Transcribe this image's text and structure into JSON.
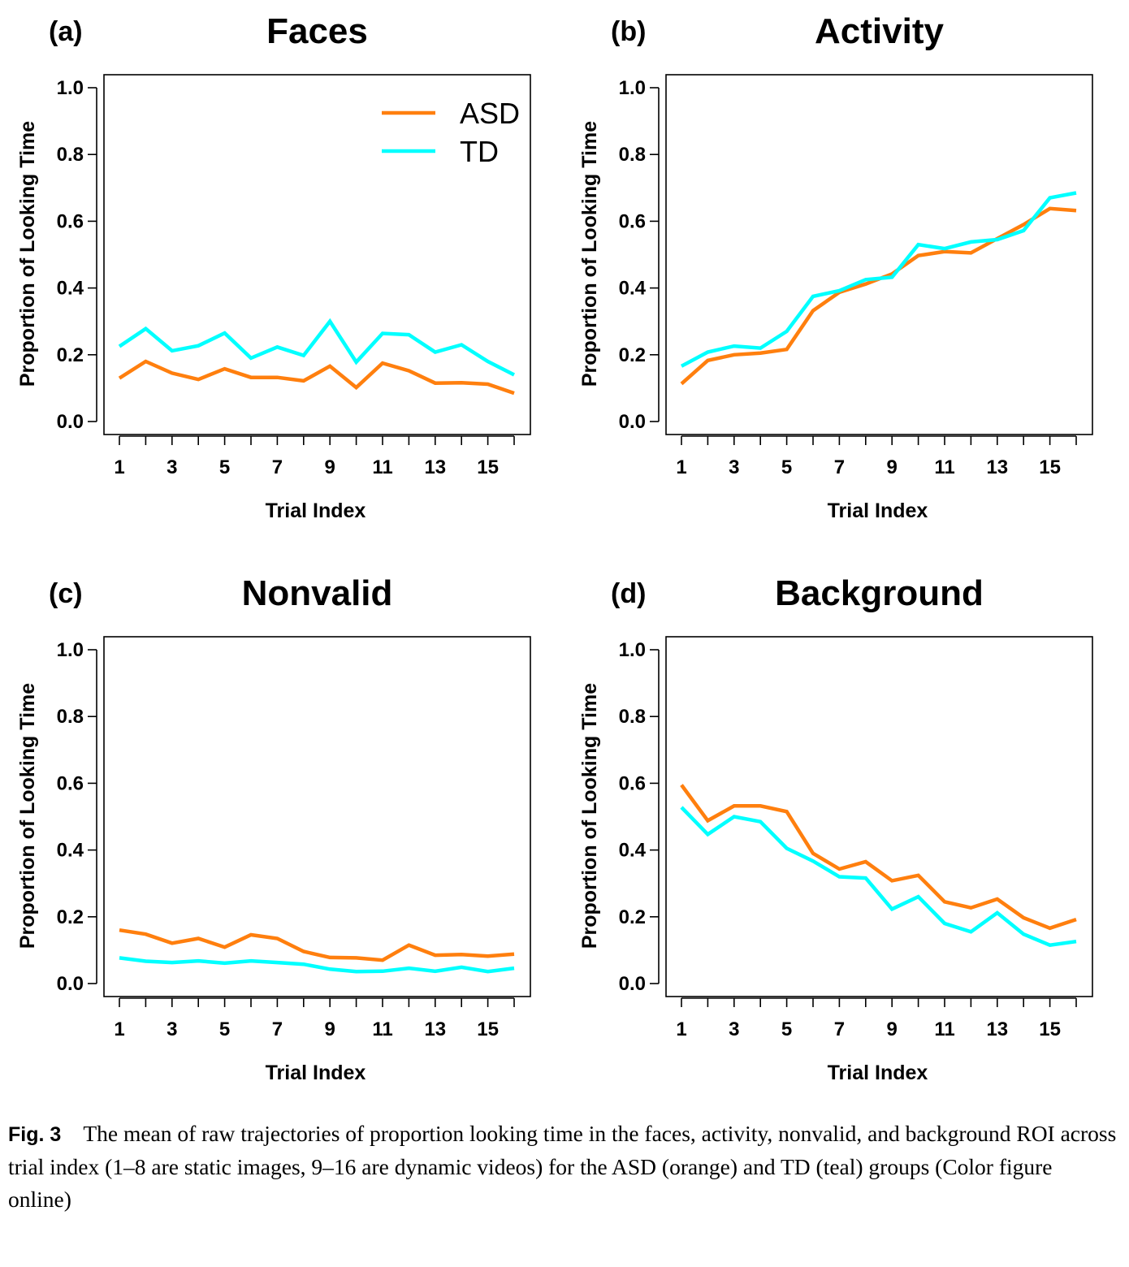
{
  "caption": {
    "label": "Fig. 3",
    "text": "The mean of raw trajectories of proportion looking time in the faces, activity, nonvalid, and background ROI across trial index (1–8 are static images, 9–16 are dynamic videos) for the ASD (orange) and TD (teal) groups (Color figure online)"
  },
  "colors": {
    "ASD": "#ff7f0e",
    "TD": "#00ffff"
  },
  "chart_data": [
    {
      "type": "line",
      "panel": "(a)",
      "title": "Faces",
      "xlabel": "Trial Index",
      "ylabel": "Proportion of Looking Time",
      "ylim": [
        0,
        1
      ],
      "yticks": [
        "0.0",
        "0.2",
        "0.4",
        "0.6",
        "0.8",
        "1.0"
      ],
      "xticklabels": [
        "1",
        "3",
        "5",
        "7",
        "9",
        "11",
        "13",
        "15"
      ],
      "x": [
        1,
        2,
        3,
        4,
        5,
        6,
        7,
        8,
        9,
        10,
        11,
        12,
        13,
        14,
        15,
        16
      ],
      "legend": {
        "position": "top-right",
        "entries": [
          "ASD",
          "TD"
        ]
      },
      "series": [
        {
          "name": "ASD",
          "color": "#ff7f0e",
          "values": [
            0.13,
            0.18,
            0.145,
            0.126,
            0.158,
            0.132,
            0.132,
            0.122,
            0.166,
            0.102,
            0.175,
            0.152,
            0.115,
            0.116,
            0.112,
            0.085
          ]
        },
        {
          "name": "TD",
          "color": "#00ffff",
          "values": [
            0.225,
            0.278,
            0.212,
            0.227,
            0.265,
            0.19,
            0.223,
            0.198,
            0.3,
            0.178,
            0.264,
            0.26,
            0.208,
            0.23,
            0.18,
            0.14
          ]
        }
      ]
    },
    {
      "type": "line",
      "panel": "(b)",
      "title": "Activity",
      "xlabel": "Trial Index",
      "ylabel": "Proportion of Looking Time",
      "ylim": [
        0,
        1
      ],
      "yticks": [
        "0.0",
        "0.2",
        "0.4",
        "0.6",
        "0.8",
        "1.0"
      ],
      "xticklabels": [
        "1",
        "3",
        "5",
        "7",
        "9",
        "11",
        "13",
        "15"
      ],
      "x": [
        1,
        2,
        3,
        4,
        5,
        6,
        7,
        8,
        9,
        10,
        11,
        12,
        13,
        14,
        15,
        16
      ],
      "series": [
        {
          "name": "ASD",
          "color": "#ff7f0e",
          "values": [
            0.113,
            0.183,
            0.2,
            0.205,
            0.216,
            0.332,
            0.387,
            0.412,
            0.442,
            0.497,
            0.509,
            0.505,
            0.548,
            0.59,
            0.638,
            0.632
          ]
        },
        {
          "name": "TD",
          "color": "#00ffff",
          "values": [
            0.166,
            0.208,
            0.226,
            0.22,
            0.27,
            0.375,
            0.392,
            0.425,
            0.432,
            0.53,
            0.518,
            0.538,
            0.545,
            0.572,
            0.67,
            0.685
          ]
        }
      ]
    },
    {
      "type": "line",
      "panel": "(c)",
      "title": "Nonvalid",
      "xlabel": "Trial Index",
      "ylabel": "Proportion of Looking Time",
      "ylim": [
        0,
        1
      ],
      "yticks": [
        "0.0",
        "0.2",
        "0.4",
        "0.6",
        "0.8",
        "1.0"
      ],
      "xticklabels": [
        "1",
        "3",
        "5",
        "7",
        "9",
        "11",
        "13",
        "15"
      ],
      "x": [
        1,
        2,
        3,
        4,
        5,
        6,
        7,
        8,
        9,
        10,
        11,
        12,
        13,
        14,
        15,
        16
      ],
      "series": [
        {
          "name": "ASD",
          "color": "#ff7f0e",
          "values": [
            0.16,
            0.148,
            0.121,
            0.135,
            0.109,
            0.146,
            0.135,
            0.096,
            0.078,
            0.077,
            0.07,
            0.115,
            0.085,
            0.087,
            0.082,
            0.088
          ]
        },
        {
          "name": "TD",
          "color": "#00ffff",
          "values": [
            0.077,
            0.067,
            0.063,
            0.068,
            0.061,
            0.068,
            0.063,
            0.058,
            0.043,
            0.036,
            0.037,
            0.046,
            0.037,
            0.049,
            0.036,
            0.046
          ]
        }
      ]
    },
    {
      "type": "line",
      "panel": "(d)",
      "title": "Background",
      "xlabel": "Trial Index",
      "ylabel": "Proportion of Looking Time",
      "ylim": [
        0,
        1
      ],
      "yticks": [
        "0.0",
        "0.2",
        "0.4",
        "0.6",
        "0.8",
        "1.0"
      ],
      "xticklabels": [
        "1",
        "3",
        "5",
        "7",
        "9",
        "11",
        "13",
        "15"
      ],
      "x": [
        1,
        2,
        3,
        4,
        5,
        6,
        7,
        8,
        9,
        10,
        11,
        12,
        13,
        14,
        15,
        16
      ],
      "series": [
        {
          "name": "ASD",
          "color": "#ff7f0e",
          "values": [
            0.595,
            0.488,
            0.532,
            0.532,
            0.515,
            0.39,
            0.343,
            0.365,
            0.308,
            0.324,
            0.245,
            0.227,
            0.253,
            0.197,
            0.166,
            0.192
          ]
        },
        {
          "name": "TD",
          "color": "#00ffff",
          "values": [
            0.528,
            0.447,
            0.5,
            0.485,
            0.405,
            0.367,
            0.32,
            0.316,
            0.223,
            0.26,
            0.18,
            0.155,
            0.212,
            0.148,
            0.115,
            0.126
          ]
        }
      ]
    }
  ]
}
